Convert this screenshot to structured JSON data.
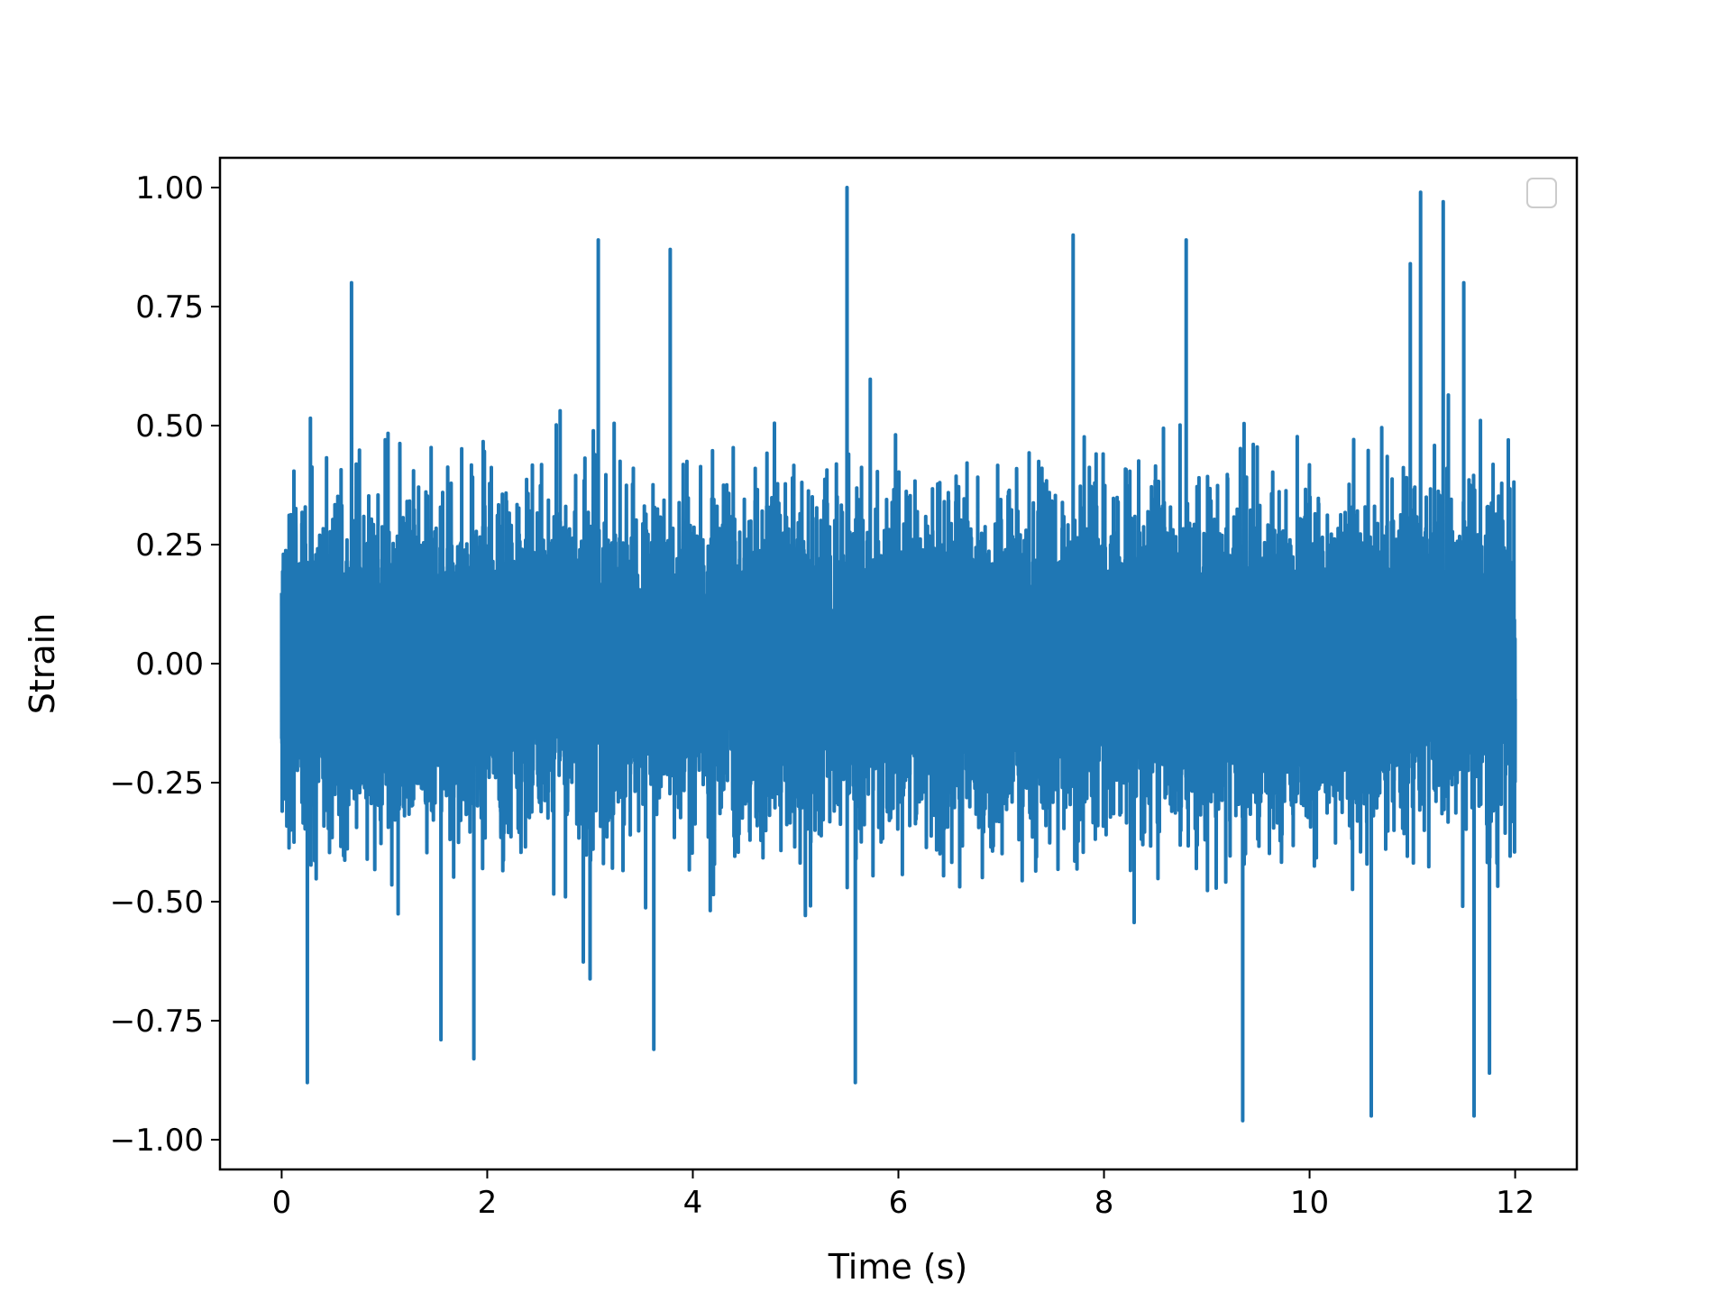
{
  "chart_data": {
    "type": "line",
    "title": "",
    "xlabel": "Time (s)",
    "ylabel": "Strain",
    "xlim": [
      -0.6,
      12.6
    ],
    "ylim": [
      -1.0625,
      1.0625
    ],
    "xticks": [
      0,
      2,
      4,
      6,
      8,
      10,
      12
    ],
    "xtick_labels": [
      "0",
      "2",
      "4",
      "6",
      "8",
      "10",
      "12"
    ],
    "yticks": [
      -1.0,
      -0.75,
      -0.5,
      -0.25,
      0.0,
      0.25,
      0.5,
      0.75,
      1.0
    ],
    "ytick_labels": [
      "−1.00",
      "−0.75",
      "−0.50",
      "−0.25",
      "0.00",
      "0.25",
      "0.50",
      "0.75",
      "1.00"
    ],
    "grid": false,
    "legend": {
      "placement": "top-right",
      "entries": []
    },
    "series": [
      {
        "color": "#1f77b4",
        "sample_count": 12000,
        "description": "noise-like strain signal from 0 to 12 s",
        "x_range": [
          0,
          12
        ],
        "envelope_typical": [
          -0.5,
          0.55
        ],
        "spikes": [
          {
            "x": 0.25,
            "y": -0.88
          },
          {
            "x": 0.68,
            "y": 0.8
          },
          {
            "x": 1.55,
            "y": -0.79
          },
          {
            "x": 1.87,
            "y": -0.83
          },
          {
            "x": 3.08,
            "y": 0.89
          },
          {
            "x": 3.78,
            "y": 0.87
          },
          {
            "x": 3.62,
            "y": -0.81
          },
          {
            "x": 5.5,
            "y": 1.0
          },
          {
            "x": 5.58,
            "y": -0.88
          },
          {
            "x": 7.7,
            "y": 0.9
          },
          {
            "x": 8.8,
            "y": 0.89
          },
          {
            "x": 9.35,
            "y": -0.96
          },
          {
            "x": 10.6,
            "y": -0.95
          },
          {
            "x": 10.98,
            "y": 0.84
          },
          {
            "x": 11.08,
            "y": 0.99
          },
          {
            "x": 11.3,
            "y": 0.97
          },
          {
            "x": 11.5,
            "y": 0.8
          },
          {
            "x": 11.6,
            "y": -0.95
          },
          {
            "x": 11.75,
            "y": -0.86
          }
        ]
      }
    ]
  }
}
